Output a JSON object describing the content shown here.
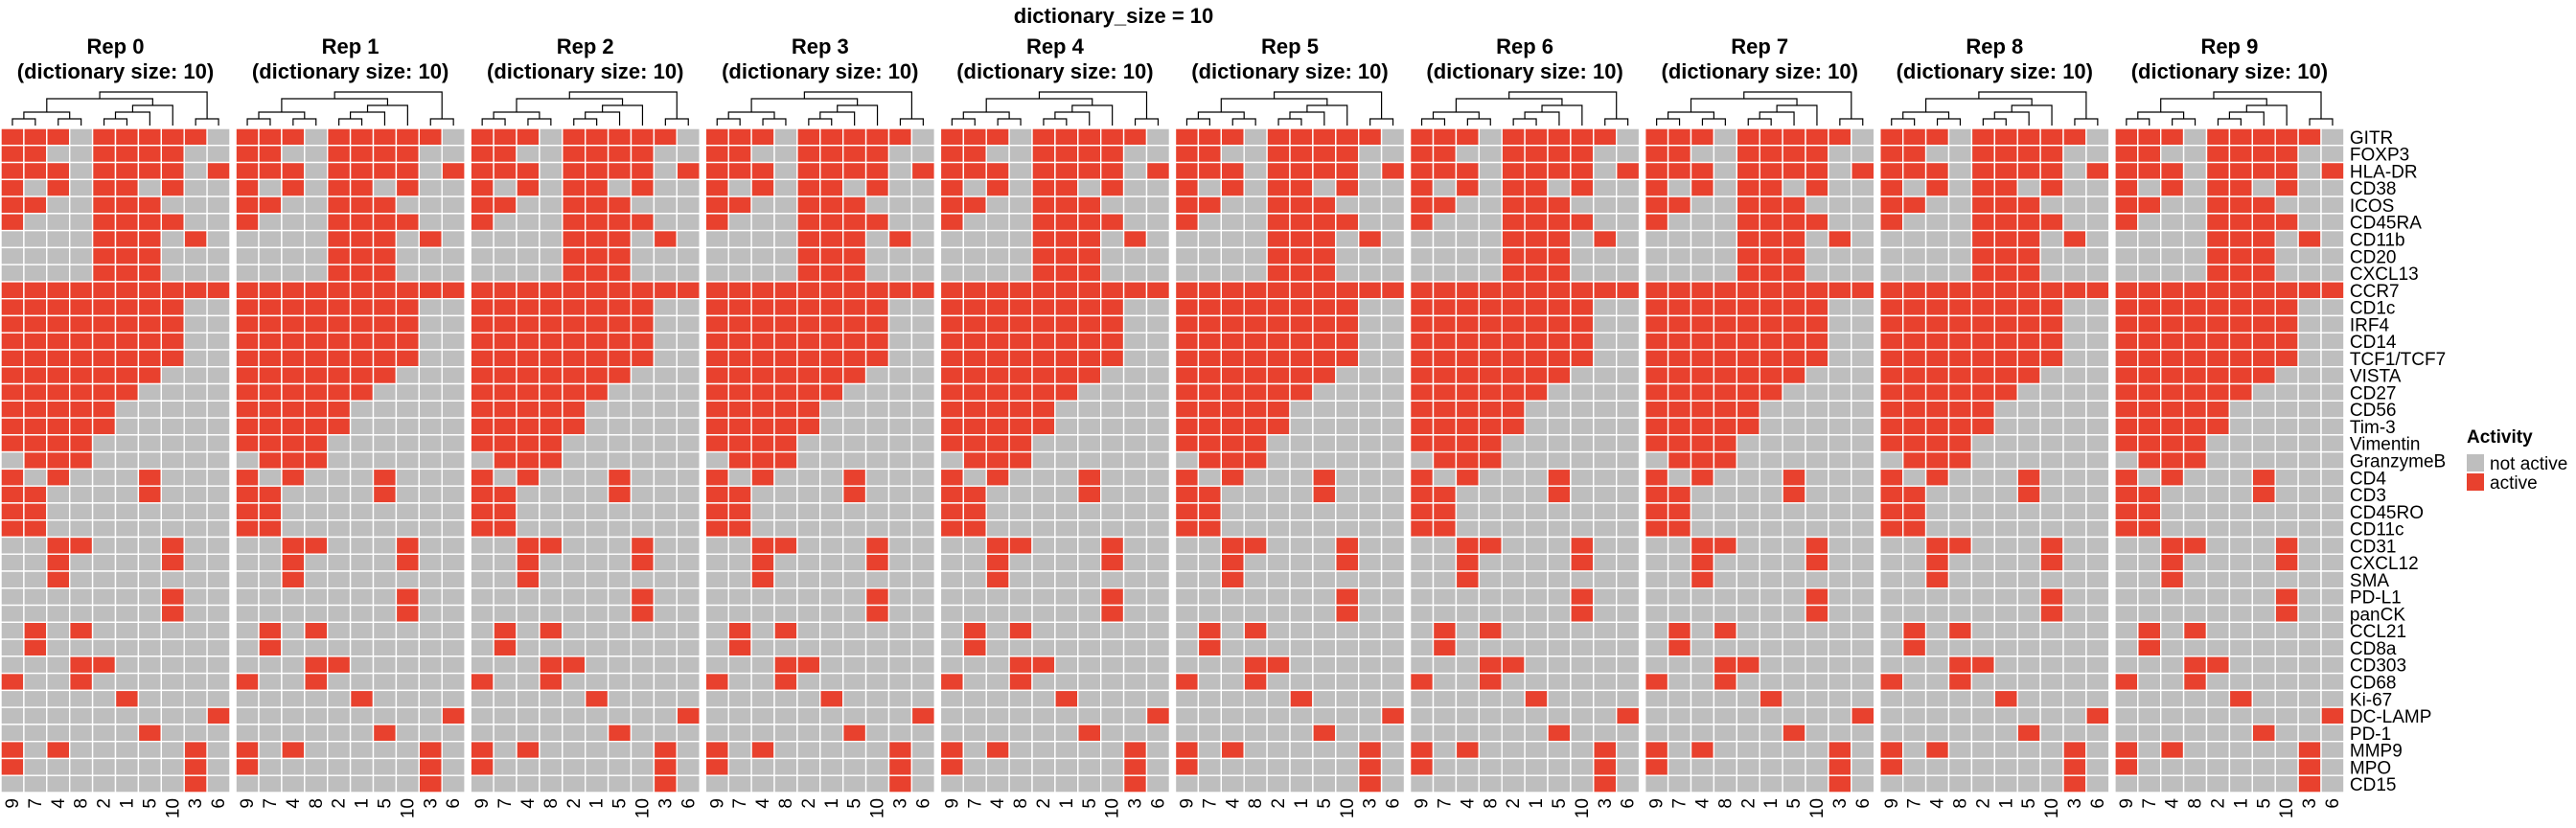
{
  "chart_data": {
    "type": "heatmap",
    "title": "dictionary_size = 10",
    "panels": [
      "Rep 0",
      "Rep 1",
      "Rep 2",
      "Rep 3",
      "Rep 4",
      "Rep 5",
      "Rep 6",
      "Rep 7",
      "Rep 8",
      "Rep 9"
    ],
    "panel_subtitle": "(dictionary size: 10)",
    "columns": [
      "9",
      "7",
      "4",
      "8",
      "2",
      "1",
      "5",
      "10",
      "3",
      "6"
    ],
    "rows": [
      "GITR",
      "FOXP3",
      "HLA-DR",
      "CD38",
      "ICOS",
      "CD45RA",
      "CD11b",
      "CD20",
      "CXCL13",
      "CCR7",
      "CD1c",
      "IRF4",
      "CD14",
      "TCF1/TCF7",
      "VISTA",
      "CD27",
      "CD56",
      "Tim-3",
      "Vimentin",
      "GranzymeB",
      "CD4",
      "CD3",
      "CD45RO",
      "CD11c",
      "CD31",
      "CXCL12",
      "SMA",
      "PD-L1",
      "panCK",
      "CCL21",
      "CD8a",
      "CD303",
      "CD68",
      "Ki-67",
      "DC-LAMP",
      "PD-1",
      "MMP9",
      "MPO",
      "CD15"
    ],
    "matrix": [
      [
        1,
        1,
        1,
        0,
        1,
        1,
        1,
        1,
        1,
        0
      ],
      [
        1,
        1,
        0,
        0,
        1,
        1,
        1,
        1,
        0,
        0
      ],
      [
        1,
        1,
        1,
        0,
        1,
        1,
        1,
        1,
        0,
        1
      ],
      [
        1,
        0,
        1,
        0,
        1,
        1,
        0,
        1,
        0,
        0
      ],
      [
        1,
        1,
        0,
        0,
        1,
        1,
        1,
        0,
        0,
        0
      ],
      [
        1,
        0,
        0,
        0,
        1,
        1,
        1,
        1,
        0,
        0
      ],
      [
        0,
        0,
        0,
        0,
        1,
        1,
        1,
        0,
        1,
        0
      ],
      [
        0,
        0,
        0,
        0,
        1,
        1,
        1,
        0,
        0,
        0
      ],
      [
        0,
        0,
        0,
        0,
        1,
        1,
        1,
        0,
        0,
        0
      ],
      [
        1,
        1,
        1,
        1,
        1,
        1,
        1,
        1,
        1,
        1
      ],
      [
        1,
        1,
        1,
        1,
        1,
        1,
        1,
        1,
        0,
        0
      ],
      [
        1,
        1,
        1,
        1,
        1,
        1,
        1,
        1,
        0,
        0
      ],
      [
        1,
        1,
        1,
        1,
        1,
        1,
        1,
        1,
        0,
        0
      ],
      [
        1,
        1,
        1,
        1,
        1,
        1,
        1,
        1,
        0,
        0
      ],
      [
        1,
        1,
        1,
        1,
        1,
        1,
        1,
        0,
        0,
        0
      ],
      [
        1,
        1,
        1,
        1,
        1,
        1,
        0,
        0,
        0,
        0
      ],
      [
        1,
        1,
        1,
        1,
        1,
        0,
        0,
        0,
        0,
        0
      ],
      [
        1,
        1,
        1,
        1,
        1,
        0,
        0,
        0,
        0,
        0
      ],
      [
        1,
        1,
        1,
        1,
        0,
        0,
        0,
        0,
        0,
        0
      ],
      [
        0,
        1,
        1,
        1,
        0,
        0,
        0,
        0,
        0,
        0
      ],
      [
        1,
        0,
        1,
        0,
        0,
        0,
        1,
        0,
        0,
        0
      ],
      [
        1,
        1,
        0,
        0,
        0,
        0,
        1,
        0,
        0,
        0
      ],
      [
        1,
        1,
        0,
        0,
        0,
        0,
        0,
        0,
        0,
        0
      ],
      [
        1,
        1,
        0,
        0,
        0,
        0,
        0,
        0,
        0,
        0
      ],
      [
        0,
        0,
        1,
        1,
        0,
        0,
        0,
        1,
        0,
        0
      ],
      [
        0,
        0,
        1,
        0,
        0,
        0,
        0,
        1,
        0,
        0
      ],
      [
        0,
        0,
        1,
        0,
        0,
        0,
        0,
        0,
        0,
        0
      ],
      [
        0,
        0,
        0,
        0,
        0,
        0,
        0,
        1,
        0,
        0
      ],
      [
        0,
        0,
        0,
        0,
        0,
        0,
        0,
        1,
        0,
        0
      ],
      [
        0,
        1,
        0,
        1,
        0,
        0,
        0,
        0,
        0,
        0
      ],
      [
        0,
        1,
        0,
        0,
        0,
        0,
        0,
        0,
        0,
        0
      ],
      [
        0,
        0,
        0,
        1,
        1,
        0,
        0,
        0,
        0,
        0
      ],
      [
        1,
        0,
        0,
        1,
        0,
        0,
        0,
        0,
        0,
        0
      ],
      [
        0,
        0,
        0,
        0,
        0,
        1,
        0,
        0,
        0,
        0
      ],
      [
        0,
        0,
        0,
        0,
        0,
        0,
        0,
        0,
        0,
        1
      ],
      [
        0,
        0,
        0,
        0,
        0,
        0,
        1,
        0,
        0,
        0
      ],
      [
        1,
        0,
        1,
        0,
        0,
        0,
        0,
        0,
        1,
        0
      ],
      [
        1,
        0,
        0,
        0,
        0,
        0,
        0,
        0,
        1,
        0
      ],
      [
        0,
        0,
        0,
        0,
        0,
        0,
        0,
        0,
        1,
        0
      ]
    ],
    "legend": {
      "title": "Activity",
      "placement": "right",
      "items": [
        {
          "label": "not active",
          "color": "#bebebe"
        },
        {
          "label": "active",
          "color": "#e8412e"
        }
      ]
    },
    "cell_border_color": "#ffffff",
    "dendrogram_color": "#000000"
  }
}
